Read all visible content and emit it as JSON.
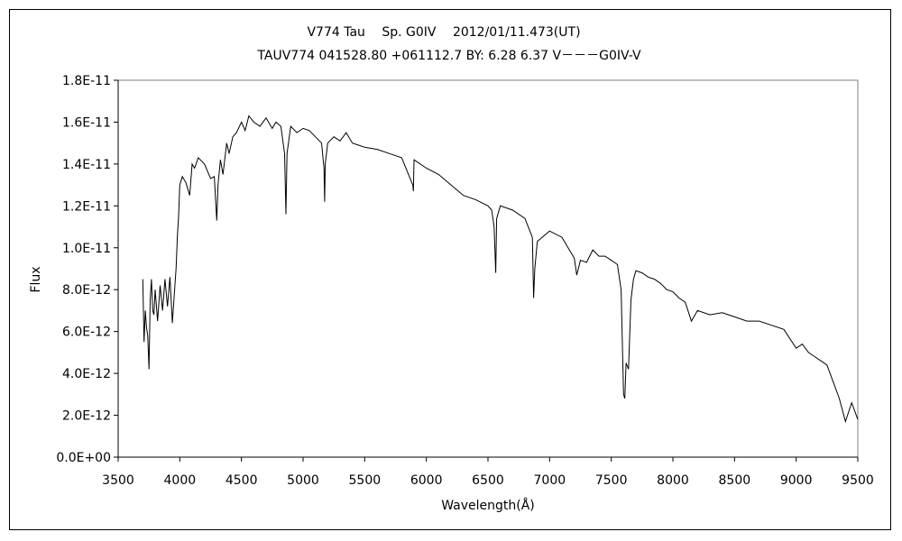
{
  "chart_data": {
    "type": "line",
    "title_line1": "V774 Tau　 Sp. G0IV　 2012/01/11.473(UT)",
    "title_line2": "TAUV774 041528.80 +061112.7 BY: 6.28 6.37 V－－－G0IV-V",
    "xlabel": "Wavelength(Å)",
    "ylabel": "Flux",
    "xlim": [
      3500,
      9500
    ],
    "ylim": [
      0,
      1.8e-11
    ],
    "x_ticks": [
      "3500",
      "4000",
      "4500",
      "5000",
      "5500",
      "6000",
      "6500",
      "7000",
      "7500",
      "8000",
      "8500",
      "9000",
      "9500"
    ],
    "y_ticks": [
      "0.0E+00",
      "2.0E-12",
      "4.0E-12",
      "6.0E-12",
      "8.0E-12",
      "1.0E-11",
      "1.2E-11",
      "1.4E-11",
      "1.6E-11",
      "1.8E-11"
    ],
    "grid": false,
    "legend": "none",
    "series": [
      {
        "color": "#000000",
        "x": [
          3700,
          3710,
          3720,
          3730,
          3740,
          3750,
          3760,
          3770,
          3780,
          3790,
          3800,
          3820,
          3840,
          3860,
          3880,
          3900,
          3920,
          3940,
          3960,
          3970,
          3980,
          3990,
          4000,
          4020,
          4050,
          4080,
          4100,
          4120,
          4150,
          4200,
          4250,
          4280,
          4300,
          4310,
          4330,
          4350,
          4380,
          4400,
          4430,
          4460,
          4500,
          4530,
          4560,
          4600,
          4650,
          4700,
          4750,
          4780,
          4820,
          4850,
          4861,
          4870,
          4900,
          4950,
          5000,
          5050,
          5100,
          5150,
          5170,
          5175,
          5180,
          5200,
          5250,
          5300,
          5350,
          5400,
          5450,
          5500,
          5600,
          5700,
          5800,
          5890,
          5895,
          5900,
          6000,
          6100,
          6200,
          6300,
          6400,
          6500,
          6530,
          6550,
          6563,
          6570,
          6600,
          6700,
          6800,
          6860,
          6870,
          6880,
          6900,
          7000,
          7100,
          7150,
          7200,
          7220,
          7250,
          7300,
          7350,
          7400,
          7450,
          7500,
          7550,
          7580,
          7600,
          7610,
          7620,
          7640,
          7660,
          7680,
          7700,
          7750,
          7800,
          7850,
          7900,
          7950,
          8000,
          8050,
          8100,
          8150,
          8180,
          8200,
          8300,
          8400,
          8500,
          8600,
          8700,
          8800,
          8900,
          9000,
          9050,
          9100,
          9150,
          9200,
          9250,
          9300,
          9350,
          9400,
          9450,
          9500
        ],
        "y": [
          8.5e-12,
          5.5e-12,
          7e-12,
          6.2e-12,
          5.8e-12,
          4.2e-12,
          7.5e-12,
          8.5e-12,
          7e-12,
          6.8e-12,
          8e-12,
          6.5e-12,
          8.2e-12,
          7e-12,
          8.5e-12,
          7.2e-12,
          8.6e-12,
          6.4e-12,
          8.2e-12,
          9e-12,
          1.05e-11,
          1.15e-11,
          1.3e-11,
          1.34e-11,
          1.31e-11,
          1.25e-11,
          1.4e-11,
          1.38e-11,
          1.43e-11,
          1.4e-11,
          1.33e-11,
          1.34e-11,
          1.13e-11,
          1.3e-11,
          1.42e-11,
          1.35e-11,
          1.5e-11,
          1.45e-11,
          1.53e-11,
          1.55e-11,
          1.6e-11,
          1.56e-11,
          1.63e-11,
          1.6e-11,
          1.58e-11,
          1.62e-11,
          1.57e-11,
          1.6e-11,
          1.58e-11,
          1.45e-11,
          1.16e-11,
          1.45e-11,
          1.58e-11,
          1.55e-11,
          1.57e-11,
          1.56e-11,
          1.53e-11,
          1.5e-11,
          1.38e-11,
          1.22e-11,
          1.4e-11,
          1.5e-11,
          1.53e-11,
          1.51e-11,
          1.55e-11,
          1.5e-11,
          1.49e-11,
          1.48e-11,
          1.47e-11,
          1.45e-11,
          1.43e-11,
          1.3e-11,
          1.27e-11,
          1.42e-11,
          1.38e-11,
          1.35e-11,
          1.3e-11,
          1.25e-11,
          1.23e-11,
          1.2e-11,
          1.18e-11,
          1.1e-11,
          8.8e-12,
          1.14e-11,
          1.2e-11,
          1.18e-11,
          1.14e-11,
          1.05e-11,
          7.6e-12,
          9e-12,
          1.03e-11,
          1.08e-11,
          1.05e-11,
          1e-11,
          9.5e-12,
          8.7e-12,
          9.4e-12,
          9.3e-12,
          9.9e-12,
          9.6e-12,
          9.6e-12,
          9.4e-12,
          9.2e-12,
          8e-12,
          3e-12,
          2.8e-12,
          4.5e-12,
          4.2e-12,
          7.5e-12,
          8.5e-12,
          8.9e-12,
          8.8e-12,
          8.6e-12,
          8.5e-12,
          8.3e-12,
          8e-12,
          7.9e-12,
          7.6e-12,
          7.4e-12,
          6.5e-12,
          6.8e-12,
          7e-12,
          6.8e-12,
          6.9e-12,
          6.7e-12,
          6.5e-12,
          6.5e-12,
          6.3e-12,
          6.1e-12,
          5.2e-12,
          5.4e-12,
          5e-12,
          4.8e-12,
          4.6e-12,
          4.4e-12,
          3.6e-12,
          2.8e-12,
          1.7e-12,
          2.6e-12,
          1.8e-12
        ]
      }
    ]
  }
}
